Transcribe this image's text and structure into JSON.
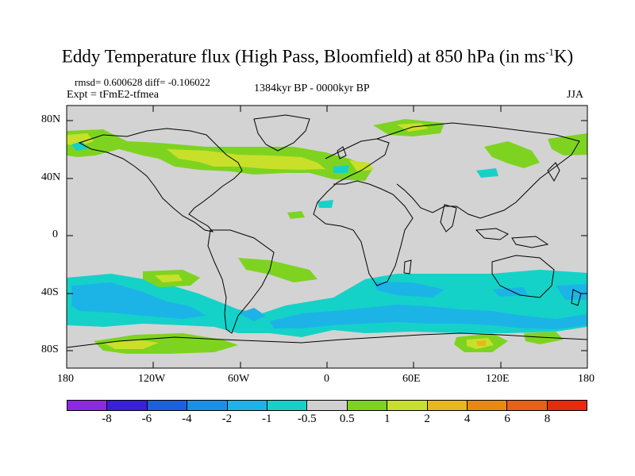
{
  "title": {
    "main": "Eddy Temperature flux (High Pass, Bloomfield) at 850 hPa (in ms",
    "sup": "-1",
    "unit_end": "K)"
  },
  "stats": "rmsd= 0.600628 diff= -0.106022",
  "expt": "Expt = tFmE2-tfmea",
  "period": "1384kyr BP - 0000kyr BP",
  "season": "JJA",
  "lat_labels": [
    "80N",
    "40N",
    "0",
    "40S",
    "80S"
  ],
  "lon_labels": [
    "180",
    "120W",
    "60W",
    "0",
    "60E",
    "120E",
    "180"
  ],
  "colorbar": {
    "labels": [
      "-8",
      "-6",
      "-4",
      "-2",
      "-1",
      "-0.5",
      "0.5",
      "1",
      "2",
      "4",
      "6",
      "8"
    ],
    "colors": [
      "#8a2be2",
      "#3a1ee0",
      "#1e5fe0",
      "#1b8fe6",
      "#1cb4e6",
      "#15d2c8",
      "#d0d0d0",
      "#7ed320",
      "#c8e02a",
      "#e8b81a",
      "#e88a12",
      "#e8601a",
      "#e82a10"
    ]
  },
  "map_colors": {
    "ocean_gray": "#d3d3d3",
    "pos_1": "#7ed320",
    "pos_2": "#c8e02a",
    "pos_4": "#e8b81a",
    "neg_05": "#15d2c8",
    "neg_1": "#1cb4e6",
    "coast": "#000000"
  }
}
